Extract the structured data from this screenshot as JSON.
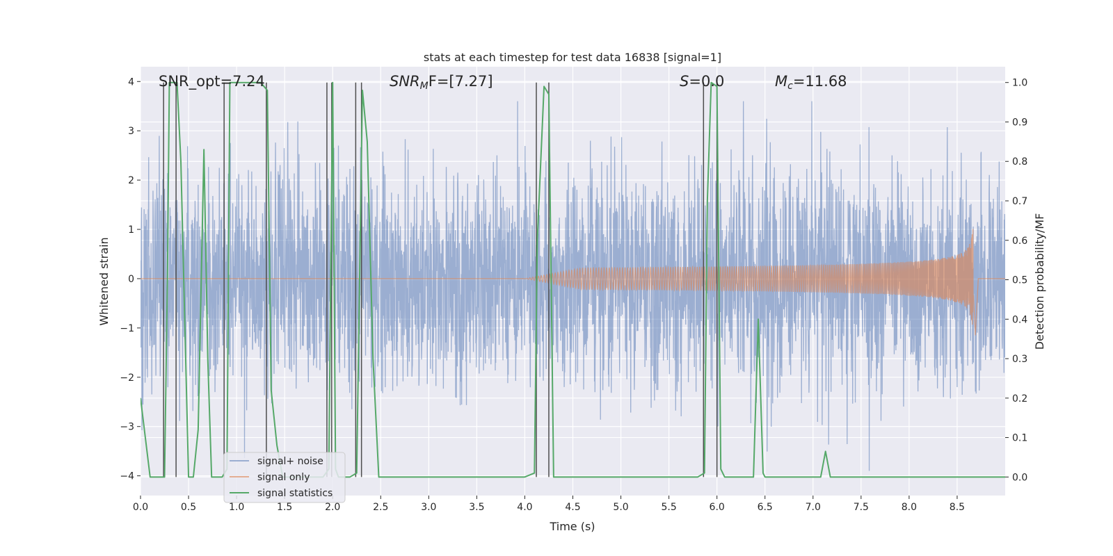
{
  "chart_data": {
    "type": "line",
    "title": "stats at each timestep for test data 16838 [signal=1]",
    "xlabel": "Time (s)",
    "ylabel": "Whitened strain",
    "ylabel_right": "Detection probability/MF",
    "xlim": [
      0.0,
      9.0
    ],
    "ylim_left": [
      -4.4,
      4.3
    ],
    "ylim_right": [
      -0.047,
      1.04
    ],
    "x_ticks": [
      0.0,
      0.5,
      1.0,
      1.5,
      2.0,
      2.5,
      3.0,
      3.5,
      4.0,
      4.5,
      5.0,
      5.5,
      6.0,
      6.5,
      7.0,
      7.5,
      8.0,
      8.5
    ],
    "x_tick_labels": [
      "0.0",
      "0.5",
      "1.0",
      "1.5",
      "2.0",
      "2.5",
      "3.0",
      "3.5",
      "4.0",
      "4.5",
      "5.0",
      "5.5",
      "6.0",
      "6.5",
      "7.0",
      "7.5",
      "8.0",
      "8.5"
    ],
    "y_left_ticks": [
      -4,
      -3,
      -2,
      -1,
      0,
      1,
      2,
      3,
      4
    ],
    "y_left_tick_labels": [
      "−4",
      "−3",
      "−2",
      "−1",
      "0",
      "1",
      "2",
      "3",
      "4"
    ],
    "y_right_ticks": [
      0.0,
      0.1,
      0.2,
      0.3,
      0.4,
      0.5,
      0.6,
      0.7,
      0.8,
      0.9,
      1.0
    ],
    "y_right_tick_labels": [
      "0.0",
      "0.1",
      "0.2",
      "0.3",
      "0.4",
      "0.5",
      "0.6",
      "0.7",
      "0.8",
      "0.9",
      "1.0"
    ],
    "grid": true,
    "legend_placement": "lower-left",
    "annotations": {
      "snr_opt": "SNR_opt=7.24",
      "snr_mf_main": "SNR",
      "snr_mf_sub": "M",
      "snr_mf_rest": "F=[7.27]",
      "s_main": "S",
      "s_rest": "=0.0",
      "mc_main": "M",
      "mc_sub": "c",
      "mc_rest": "=11.68"
    },
    "series": [
      {
        "name": "signal+ noise",
        "color": "#4c72b0",
        "noise_envelope": {
          "typical_abs": 1.5,
          "max": 3.6,
          "min": -3.9
        }
      },
      {
        "name": "signal only",
        "color": "#dd8452",
        "chirp": {
          "start": 4.0,
          "peak_time": 8.67,
          "peak_amplitude": 1.25,
          "min_amplitude": -1.15
        }
      },
      {
        "name": "signal statistics",
        "color": "#55a868",
        "x": [
          0.0,
          0.05,
          0.1,
          0.25,
          0.28,
          0.3,
          0.34,
          0.38,
          0.42,
          0.46,
          0.5,
          0.55,
          0.6,
          0.66,
          0.7,
          0.74,
          0.78,
          0.85,
          0.9,
          0.93,
          0.97,
          1.05,
          1.15,
          1.25,
          1.32,
          1.36,
          1.42,
          1.48,
          1.6,
          1.75,
          1.9,
          1.96,
          2.0,
          2.03,
          2.06,
          2.1,
          2.18,
          2.25,
          2.31,
          2.36,
          2.42,
          2.48,
          2.6,
          3.0,
          3.5,
          4.0,
          4.1,
          4.13,
          4.2,
          4.25,
          4.3,
          4.5,
          5.0,
          5.5,
          5.8,
          5.87,
          5.9,
          5.94,
          6.0,
          6.04,
          6.08,
          6.15,
          6.3,
          6.38,
          6.43,
          6.48,
          6.5,
          6.6,
          7.0,
          7.08,
          7.13,
          7.18,
          7.25,
          7.5,
          8.0,
          8.5,
          9.0
        ],
        "y": [
          0.2,
          0.1,
          0.0,
          0.0,
          0.5,
          1.0,
          1.0,
          1.0,
          0.8,
          0.4,
          0.0,
          0.0,
          0.12,
          0.83,
          0.3,
          0.0,
          0.0,
          0.0,
          0.02,
          1.0,
          1.0,
          1.0,
          1.0,
          1.0,
          0.98,
          0.22,
          0.08,
          0.0,
          0.0,
          0.0,
          0.0,
          0.02,
          1.0,
          0.02,
          0.0,
          0.0,
          0.0,
          0.01,
          0.98,
          0.85,
          0.3,
          0.0,
          0.0,
          0.0,
          0.0,
          0.0,
          0.01,
          0.6,
          0.99,
          0.97,
          0.0,
          0.0,
          0.0,
          0.0,
          0.0,
          0.01,
          0.7,
          1.0,
          0.99,
          0.02,
          0.0,
          0.0,
          0.0,
          0.0,
          0.4,
          0.01,
          0.0,
          0.0,
          0.0,
          0.0,
          0.065,
          0.0,
          0.0,
          0.0,
          0.0,
          0.0,
          0.0
        ]
      }
    ],
    "detection_markers_x": [
      0.24,
      0.37,
      0.87,
      1.31,
      1.94,
      1.99,
      2.24,
      2.3,
      4.12,
      4.25,
      5.86,
      6.0
    ]
  }
}
